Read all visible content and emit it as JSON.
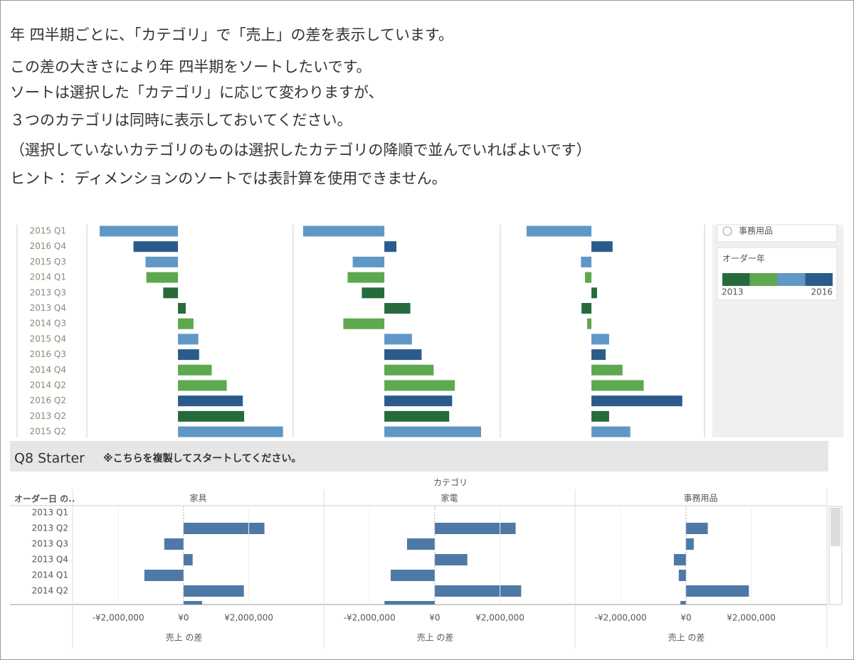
{
  "instructions": [
    "年 四半期ごとに、「カテゴリ」で「売上」の差を表示しています。",
    "この差の大きさにより年 四半期をソートしたいです。",
    "ソートは選択した「カテゴリ」に応じて変わりますが、",
    "３つのカテゴリは同時に表示しておいてください。",
    "（選択していないカテゴリのものは選択したカテゴリの降順で並んでいればよいです）",
    "ヒント： ディメンションのソートでは表計算を使用できません。"
  ],
  "legend_panel": {
    "option": "事務用品",
    "color_legend": {
      "title": "オーダー年",
      "start": "2013",
      "end": "2016",
      "colors": [
        "#276b3d",
        "#5ea84f",
        "#6097c6",
        "#2b5b8c"
      ]
    }
  },
  "chart_data": [
    {
      "type": "bar",
      "orientation": "horizontal",
      "categories": [
        "2015 Q1",
        "2016 Q4",
        "2015 Q3",
        "2014 Q1",
        "2013 Q3",
        "2013 Q4",
        "2014 Q3",
        "2015 Q4",
        "2016 Q3",
        "2014 Q4",
        "2014 Q2",
        "2016 Q2",
        "2013 Q2",
        "2015 Q2"
      ],
      "colors": [
        "#6097c6",
        "#2b5b8c",
        "#6097c6",
        "#5ea84f",
        "#276b3d",
        "#276b3d",
        "#5ea84f",
        "#6097c6",
        "#2b5b8c",
        "#5ea84f",
        "#5ea84f",
        "#2b5b8c",
        "#276b3d",
        "#6097c6"
      ],
      "xlim": [
        -3400000,
        4300000
      ],
      "series": [
        {
          "values": [
            -2920000,
            -1660000,
            -1210000,
            -1180000,
            -550000,
            290000,
            580000,
            760000,
            790000,
            1260000,
            1820000,
            2420000,
            2470000,
            3920000
          ]
        },
        {
          "values": [
            -3030000,
            450000,
            -1180000,
            -1370000,
            -840000,
            970000,
            -1530000,
            1030000,
            1390000,
            1840000,
            2630000,
            2530000,
            2420000,
            3610000
          ]
        },
        {
          "values": [
            -2420000,
            790000,
            -390000,
            -240000,
            210000,
            -370000,
            -160000,
            660000,
            530000,
            1160000,
            1950000,
            3390000,
            660000,
            1450000
          ]
        }
      ]
    },
    {
      "type": "bar",
      "orientation": "horizontal",
      "title": "Q8 Starter",
      "subtitle": "※こちらを複製してスタートしてください。",
      "column_header": "カテゴリ",
      "row_header": "オーダー日 の..",
      "x_label": "売上 の差",
      "categories": [
        "2013 Q1",
        "2013 Q2",
        "2013 Q3",
        "2013 Q4",
        "2014 Q1",
        "2014 Q2",
        null
      ],
      "xlim": [
        -3400000,
        4300000
      ],
      "xticks": [
        {
          "value": -2000000,
          "label": "-¥2,000,000"
        },
        {
          "value": 0,
          "label": "¥0"
        },
        {
          "value": 2000000,
          "label": "¥2,000,000"
        }
      ],
      "series": [
        {
          "name": "家具",
          "color": "#4e79a7",
          "values": [
            null,
            2480000,
            -590000,
            280000,
            -1200000,
            1850000,
            570000
          ]
        },
        {
          "name": "家電",
          "color": "#4e79a7",
          "values": [
            null,
            2480000,
            -850000,
            1000000,
            -1350000,
            2650000,
            -1540000
          ]
        },
        {
          "name": "事務用品",
          "color": "#4e79a7",
          "values": [
            null,
            670000,
            240000,
            -370000,
            -220000,
            1930000,
            -170000
          ]
        }
      ]
    }
  ]
}
